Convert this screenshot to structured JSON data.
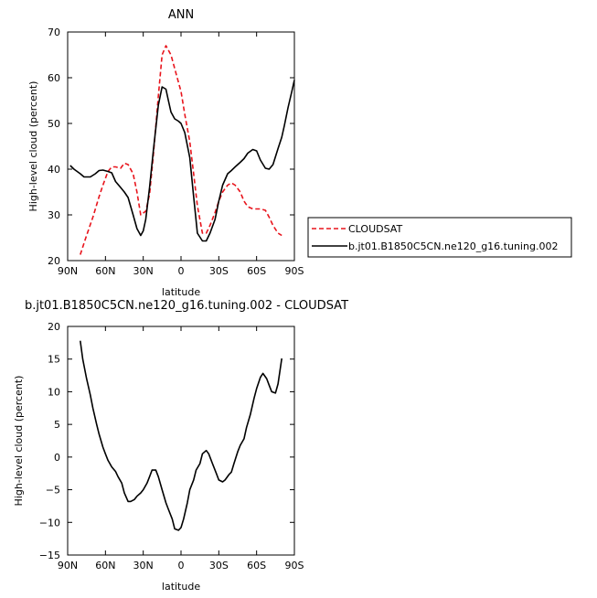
{
  "chart_data": [
    {
      "type": "line",
      "title": "ANN",
      "xlabel": "latitude",
      "ylabel": "High-level cloud (percent)",
      "xlim": [
        90,
        -90
      ],
      "ylim": [
        20,
        70
      ],
      "xticks": [
        90,
        60,
        30,
        0,
        -30,
        -60,
        -90
      ],
      "xtick_labels": [
        "90N",
        "60N",
        "30N",
        "0",
        "30S",
        "60S",
        "90S"
      ],
      "yticks": [
        20,
        30,
        40,
        50,
        60,
        70
      ],
      "ytick_labels": [
        "20",
        "30",
        "40",
        "50",
        "60",
        "70"
      ],
      "grid": false,
      "legend_position": "right",
      "series": [
        {
          "name": "CLOUDSAT",
          "color": "#e8141c",
          "dash": "dashed",
          "x": [
            80,
            75,
            70,
            65,
            62,
            58,
            55,
            52,
            48,
            45,
            42,
            38,
            35,
            32,
            28,
            25,
            22,
            18,
            15,
            12,
            8,
            5,
            2,
            0,
            -3,
            -7,
            -10,
            -13,
            -17,
            -20,
            -23,
            -27,
            -30,
            -33,
            -37,
            -40,
            -43,
            -47,
            -50,
            -53,
            -57,
            -60,
            -63,
            -67,
            -70,
            -73,
            -77,
            -80
          ],
          "y": [
            21.3,
            25.5,
            29.5,
            34,
            36.5,
            39.5,
            40.5,
            40.5,
            40.2,
            41.3,
            41,
            39,
            35,
            30,
            30.8,
            34.5,
            43,
            56,
            65,
            67,
            65,
            62,
            59,
            57,
            52,
            46,
            39,
            32,
            26,
            26,
            27.7,
            30.5,
            33,
            35,
            36.5,
            37,
            36.5,
            35,
            33,
            31.8,
            31.3,
            31.3,
            31.3,
            31,
            29.5,
            27.7,
            26,
            25.5
          ]
        },
        {
          "name": "b.jt01.B1850C5CN.ne120_g16.tuning.002",
          "color": "#000000",
          "dash": "solid",
          "x": [
            88,
            85,
            80,
            77,
            75,
            72,
            68,
            65,
            62,
            58,
            55,
            52,
            48,
            45,
            42,
            38,
            35,
            32,
            30,
            28,
            25,
            22,
            18,
            15,
            12,
            10,
            8,
            5,
            2,
            0,
            -3,
            -7,
            -10,
            -13,
            -17,
            -20,
            -23,
            -27,
            -30,
            -33,
            -37,
            -40,
            -43,
            -47,
            -50,
            -53,
            -57,
            -60,
            -63,
            -67,
            -70,
            -73,
            -77,
            -80,
            -82,
            -85,
            -88,
            -90
          ],
          "y": [
            40.8,
            40,
            39,
            38.3,
            38.3,
            38.3,
            39,
            39.7,
            39.8,
            39.5,
            39.2,
            37.3,
            36,
            35,
            33.8,
            30,
            27,
            25.5,
            26.5,
            29,
            36,
            44,
            54,
            58,
            57.5,
            55,
            52.5,
            51,
            50.5,
            50,
            48,
            42.5,
            34,
            26,
            24.3,
            24.3,
            26,
            29,
            33,
            36.5,
            39,
            39.7,
            40.5,
            41.5,
            42.3,
            43.5,
            44.3,
            44,
            42,
            40.2,
            40,
            41,
            44.5,
            47,
            49.5,
            53.5,
            57,
            59.5
          ]
        }
      ]
    },
    {
      "type": "line",
      "title": "b.jt01.B1850C5CN.ne120_g16.tuning.002 - CLOUDSAT",
      "xlabel": "latitude",
      "ylabel": "High-level cloud (percent)",
      "xlim": [
        90,
        -90
      ],
      "ylim": [
        -15,
        20
      ],
      "xticks": [
        90,
        60,
        30,
        0,
        -30,
        -60,
        -90
      ],
      "xtick_labels": [
        "90N",
        "60N",
        "30N",
        "0",
        "30S",
        "60S",
        "90S"
      ],
      "yticks": [
        -15,
        -10,
        -5,
        0,
        5,
        10,
        15,
        20
      ],
      "ytick_labels": [
        "−15",
        "−10",
        "−5",
        "0",
        "5",
        "10",
        "15",
        "20"
      ],
      "grid": false,
      "series": [
        {
          "color": "#000000",
          "dash": "solid",
          "x": [
            80,
            78,
            75,
            72,
            70,
            67,
            65,
            62,
            60,
            58,
            55,
            52,
            50,
            47,
            45,
            42,
            40,
            37,
            35,
            32,
            30,
            27,
            25,
            23,
            20,
            18,
            15,
            12,
            10,
            7,
            5,
            2,
            0,
            -2,
            -5,
            -7,
            -10,
            -12,
            -15,
            -17,
            -20,
            -22,
            -25,
            -28,
            -30,
            -33,
            -35,
            -38,
            -40,
            -42,
            -45,
            -47,
            -50,
            -52,
            -55,
            -58,
            -60,
            -63,
            -65,
            -68,
            -70,
            -72,
            -75,
            -77,
            -80
          ],
          "y": [
            17.8,
            15,
            12,
            9.5,
            7.5,
            5,
            3.5,
            1.5,
            0.5,
            -0.5,
            -1.5,
            -2.2,
            -3,
            -4,
            -5.5,
            -6.8,
            -6.8,
            -6.5,
            -6,
            -5.5,
            -5,
            -4,
            -3,
            -2,
            -2,
            -3,
            -5,
            -7,
            -8,
            -9.5,
            -11,
            -11.2,
            -10.8,
            -9.5,
            -7,
            -5,
            -3.5,
            -2,
            -1,
            0.5,
            1,
            0.5,
            -1,
            -2.5,
            -3.5,
            -3.8,
            -3.5,
            -2.7,
            -2.3,
            -1,
            0.8,
            1.8,
            2.8,
            4.5,
            6.5,
            9,
            10.5,
            12.2,
            12.8,
            12,
            11,
            10,
            9.8,
            11.2,
            15.1
          ]
        }
      ]
    }
  ]
}
